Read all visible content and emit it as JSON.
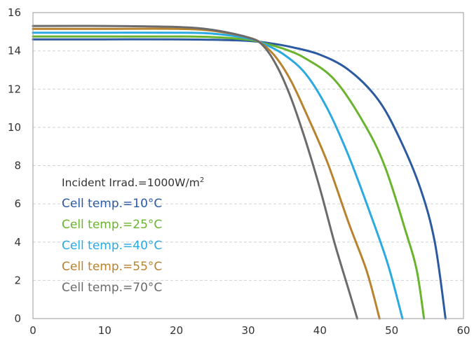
{
  "chart_data": {
    "type": "line",
    "xlim": [
      0,
      60
    ],
    "ylim": [
      0,
      16
    ],
    "x_ticks": [
      "0",
      "10",
      "20",
      "30",
      "40",
      "50",
      "60"
    ],
    "y_ticks": [
      "0",
      "2",
      "4",
      "6",
      "8",
      "10",
      "12",
      "14",
      "16"
    ],
    "grid": "horizontal dashed",
    "legend_position": "lower-left",
    "legend_title": {
      "text": "Incident Irrad.=1000W/m",
      "sup": "2"
    },
    "series": [
      {
        "name": "Cell temp.=10°C",
        "color": "#2c5aa0",
        "points": [
          [
            0,
            14.6
          ],
          [
            10,
            14.6
          ],
          [
            20,
            14.6
          ],
          [
            25,
            14.58
          ],
          [
            30,
            14.52
          ],
          [
            33,
            14.4
          ],
          [
            36,
            14.2
          ],
          [
            40,
            13.8
          ],
          [
            44,
            13.0
          ],
          [
            48,
            11.5
          ],
          [
            51,
            9.5
          ],
          [
            54,
            6.8
          ],
          [
            56,
            4.0
          ],
          [
            57.5,
            0
          ]
        ]
      },
      {
        "name": "Cell temp.=25°C",
        "color": "#6ab42d",
        "points": [
          [
            0,
            14.75
          ],
          [
            10,
            14.75
          ],
          [
            20,
            14.75
          ],
          [
            25,
            14.72
          ],
          [
            30,
            14.58
          ],
          [
            32,
            14.42
          ],
          [
            35,
            14.1
          ],
          [
            38,
            13.6
          ],
          [
            42,
            12.5
          ],
          [
            46,
            10.3
          ],
          [
            49,
            8.0
          ],
          [
            52,
            4.5
          ],
          [
            53.5,
            2.5
          ],
          [
            54.5,
            0
          ]
        ]
      },
      {
        "name": "Cell temp.=40°C",
        "color": "#2ba9e1",
        "points": [
          [
            0,
            14.95
          ],
          [
            10,
            14.95
          ],
          [
            20,
            14.95
          ],
          [
            25,
            14.9
          ],
          [
            30,
            14.65
          ],
          [
            32,
            14.4
          ],
          [
            35,
            13.8
          ],
          [
            38,
            12.8
          ],
          [
            41,
            11.0
          ],
          [
            44,
            8.5
          ],
          [
            47,
            5.5
          ],
          [
            49.5,
            2.8
          ],
          [
            51.5,
            0
          ]
        ]
      },
      {
        "name": "Cell temp.=55°C",
        "color": "#b8822e",
        "points": [
          [
            0,
            15.15
          ],
          [
            10,
            15.15
          ],
          [
            20,
            15.15
          ],
          [
            25,
            15.05
          ],
          [
            30,
            14.7
          ],
          [
            32,
            14.35
          ],
          [
            34,
            13.6
          ],
          [
            36,
            12.4
          ],
          [
            38,
            10.8
          ],
          [
            41,
            8.2
          ],
          [
            44,
            5.0
          ],
          [
            46.5,
            2.5
          ],
          [
            48.3,
            0
          ]
        ]
      },
      {
        "name": "Cell temp.=70°C",
        "color": "#6b6b6b",
        "points": [
          [
            0,
            15.3
          ],
          [
            10,
            15.3
          ],
          [
            20,
            15.25
          ],
          [
            25,
            15.1
          ],
          [
            30,
            14.7
          ],
          [
            32,
            14.3
          ],
          [
            34,
            13.2
          ],
          [
            36,
            11.5
          ],
          [
            38,
            9.3
          ],
          [
            40,
            6.8
          ],
          [
            42,
            4.0
          ],
          [
            44,
            1.5
          ],
          [
            45.2,
            0
          ]
        ]
      }
    ]
  }
}
